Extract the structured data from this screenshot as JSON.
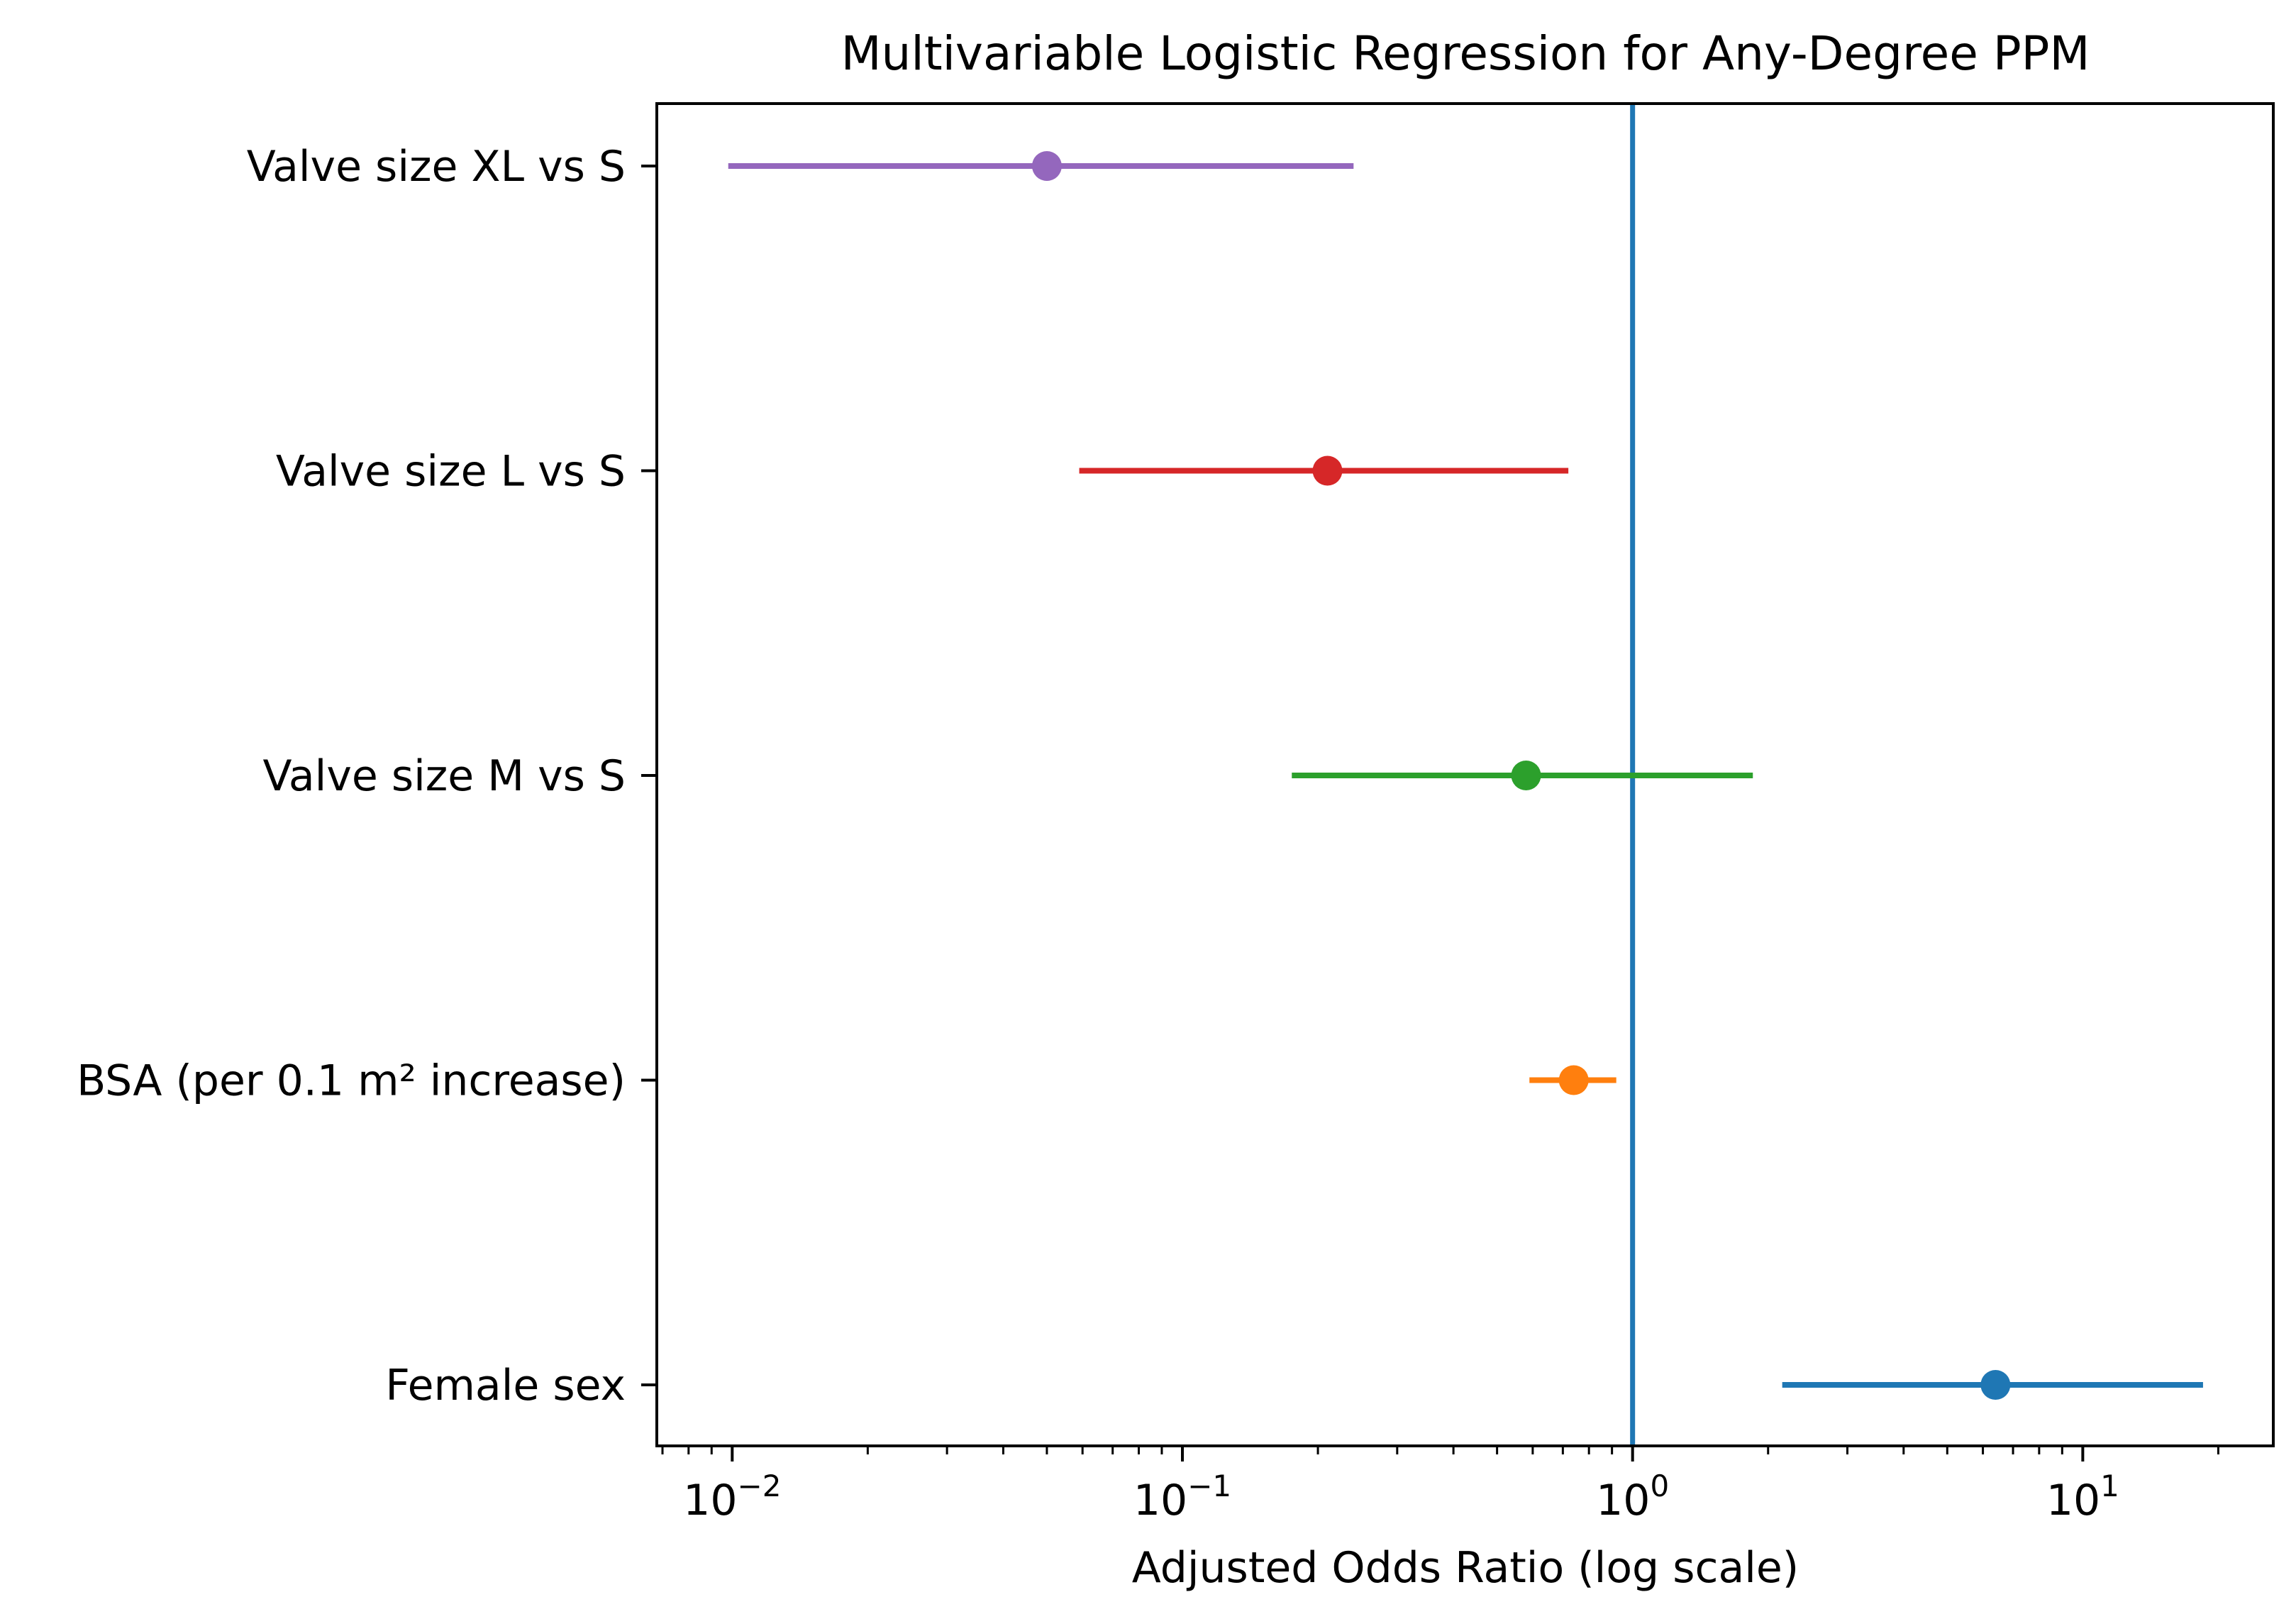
{
  "chart_data": {
    "type": "forest",
    "title": "Multivariable Logistic Regression for Any-Degree PPM",
    "xlabel": "Adjusted Odds Ratio (log scale)",
    "ylabel": "",
    "xscale": "log",
    "xlim": [
      0.0068,
      26.5
    ],
    "reference_line": {
      "x": 1.0,
      "color": "#1f77b4"
    },
    "x_ticks": [
      {
        "value": 0.01,
        "base": "10",
        "exp": "−2"
      },
      {
        "value": 0.1,
        "base": "10",
        "exp": "−1"
      },
      {
        "value": 1,
        "base": "10",
        "exp": "0"
      },
      {
        "value": 10,
        "base": "10",
        "exp": "1"
      }
    ],
    "series": [
      {
        "name": "Valve size XL vs S",
        "or": 0.05,
        "ci_low": 0.0098,
        "ci_high": 0.24,
        "color": "#9467bd"
      },
      {
        "name": "Valve size L vs S",
        "or": 0.21,
        "ci_low": 0.059,
        "ci_high": 0.72,
        "color": "#d62728"
      },
      {
        "name": "Valve size M vs S",
        "or": 0.58,
        "ci_low": 0.175,
        "ci_high": 1.85,
        "color": "#2ca02c"
      },
      {
        "name": "BSA (per 0.1 m² increase)",
        "or": 0.74,
        "ci_low": 0.59,
        "ci_high": 0.92,
        "color": "#ff7f0e"
      },
      {
        "name": "Female sex",
        "or": 6.4,
        "ci_low": 2.15,
        "ci_high": 18.5,
        "color": "#1f77b4"
      }
    ]
  }
}
